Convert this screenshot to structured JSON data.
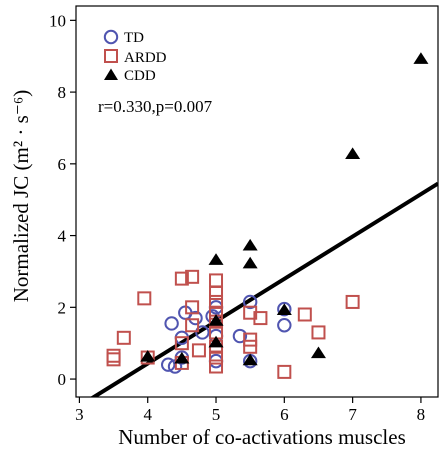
{
  "chart_data": {
    "type": "scatter",
    "xlabel": "Number of co-activations muscles",
    "ylabel": "Normalized JC (m² · s⁻⁶)",
    "xlim": [
      2.95,
      8.25
    ],
    "ylim": [
      -0.5,
      10.4
    ],
    "x_ticks": [
      3,
      4,
      5,
      6,
      7,
      8
    ],
    "y_ticks": [
      0,
      2,
      4,
      6,
      8,
      10
    ],
    "grid": false,
    "legend_position": "top-left",
    "annotation": "r=0.330,p=0.007",
    "regression_line": {
      "x": [
        3.0,
        8.25
      ],
      "y": [
        -0.75,
        5.45
      ],
      "color": "#000000"
    },
    "series": [
      {
        "name": "TD",
        "marker": "circle",
        "color": "#5055b0",
        "points": [
          [
            4.3,
            0.4
          ],
          [
            4.4,
            0.35
          ],
          [
            4.35,
            1.55
          ],
          [
            4.55,
            1.85
          ],
          [
            4.5,
            1.15
          ],
          [
            4.8,
            1.3
          ],
          [
            4.7,
            1.7
          ],
          [
            4.95,
            1.75
          ],
          [
            5.0,
            2.0
          ],
          [
            5.0,
            1.2
          ],
          [
            5.0,
            0.5
          ],
          [
            5.35,
            1.2
          ],
          [
            5.5,
            2.15
          ],
          [
            6.0,
            1.5
          ],
          [
            6.0,
            1.95
          ],
          [
            5.5,
            0.5
          ],
          [
            4.5,
            0.6
          ]
        ]
      },
      {
        "name": "ARDD",
        "marker": "square",
        "color": "#c0504d",
        "points": [
          [
            3.5,
            0.55
          ],
          [
            3.5,
            0.65
          ],
          [
            3.65,
            1.15
          ],
          [
            3.95,
            2.25
          ],
          [
            4.0,
            0.6
          ],
          [
            4.5,
            2.8
          ],
          [
            4.5,
            1.0
          ],
          [
            4.5,
            0.45
          ],
          [
            4.65,
            2.85
          ],
          [
            4.65,
            2.0
          ],
          [
            4.65,
            1.5
          ],
          [
            4.75,
            0.8
          ],
          [
            5.0,
            2.75
          ],
          [
            5.0,
            2.4
          ],
          [
            5.0,
            2.15
          ],
          [
            5.0,
            1.85
          ],
          [
            5.0,
            1.6
          ],
          [
            5.0,
            1.3
          ],
          [
            5.0,
            0.9
          ],
          [
            5.0,
            0.6
          ],
          [
            5.0,
            0.35
          ],
          [
            5.5,
            1.85
          ],
          [
            5.5,
            1.1
          ],
          [
            5.5,
            0.9
          ],
          [
            5.65,
            1.7
          ],
          [
            6.0,
            0.2
          ],
          [
            6.3,
            1.8
          ],
          [
            6.5,
            1.3
          ],
          [
            7.0,
            2.15
          ]
        ]
      },
      {
        "name": "CDD",
        "marker": "triangle",
        "color": "#000000",
        "points": [
          [
            4.0,
            0.6
          ],
          [
            4.5,
            0.55
          ],
          [
            5.0,
            3.3
          ],
          [
            5.0,
            1.6
          ],
          [
            5.0,
            1.0
          ],
          [
            5.5,
            3.7
          ],
          [
            5.5,
            3.2
          ],
          [
            5.5,
            0.5
          ],
          [
            6.0,
            1.9
          ],
          [
            6.5,
            0.7
          ],
          [
            7.0,
            6.25
          ],
          [
            8.0,
            8.9
          ]
        ]
      }
    ]
  }
}
